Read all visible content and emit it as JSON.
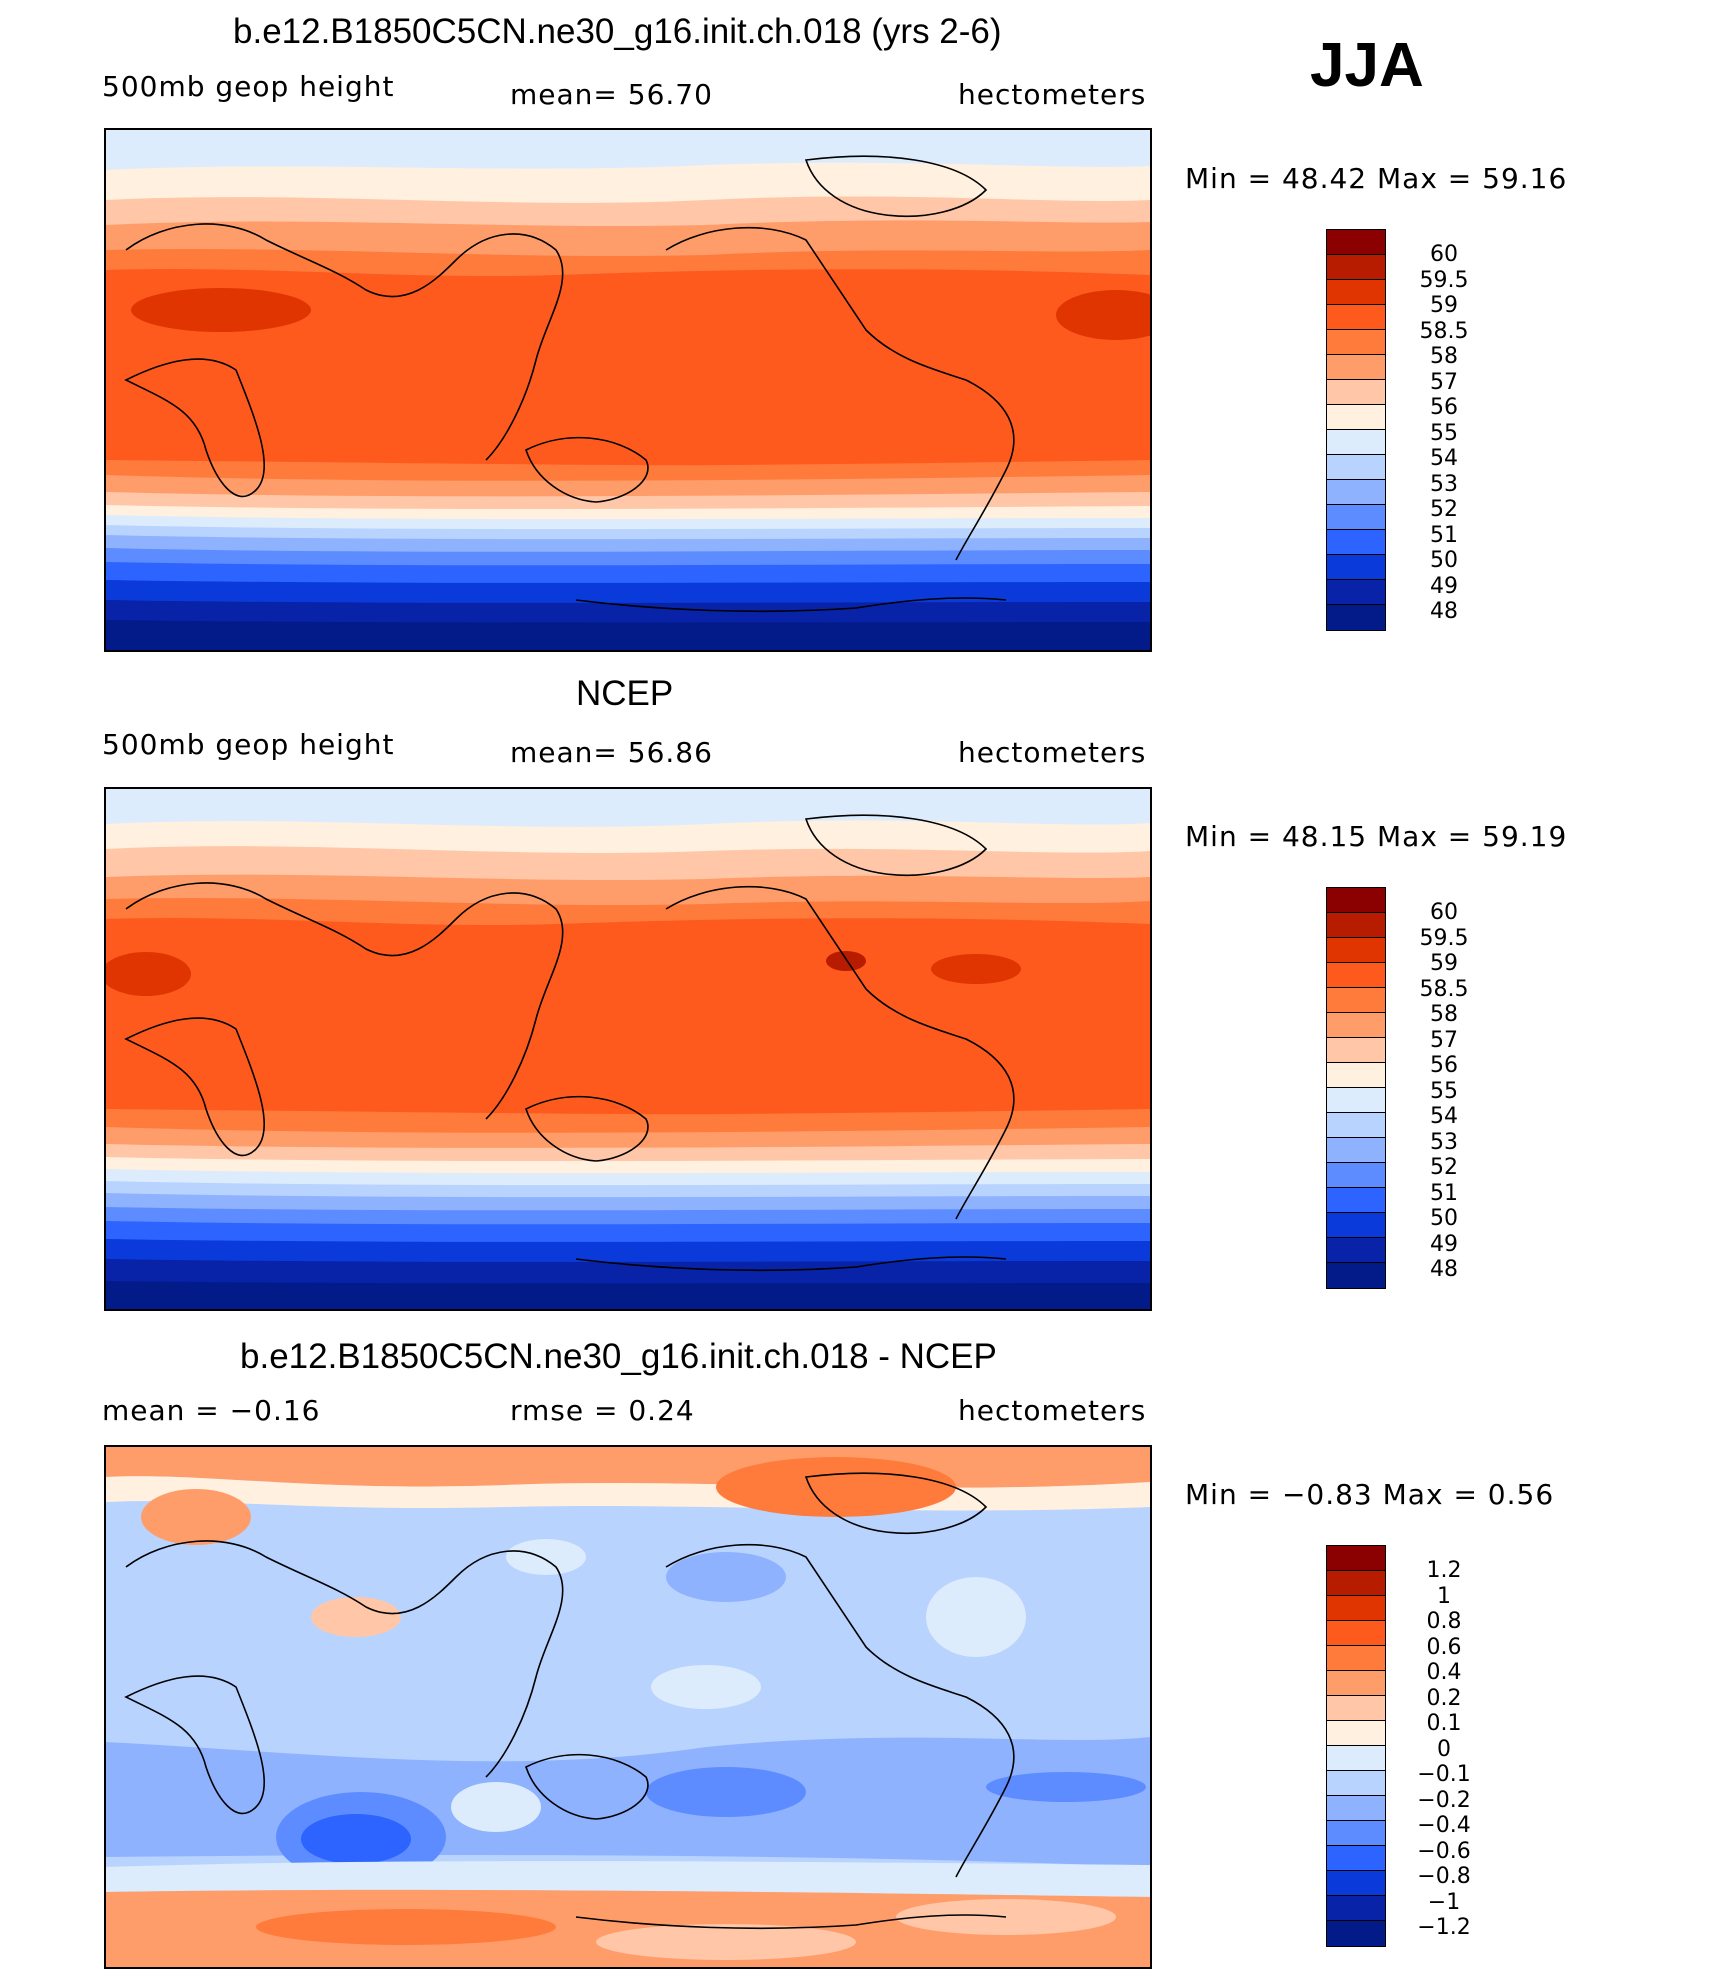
{
  "season": "JJA",
  "panels": [
    {
      "title": "b.e12.B1850C5CN.ne30_g16.init.ch.018 (yrs 2-6)",
      "left_label": "500mb geop height",
      "center_label": "mean=  56.70",
      "right_label": "hectometers",
      "minmax": "Min =   48.42 Max =   59.16",
      "colorbar_labels": [
        "60",
        "59.5",
        "59",
        "58.5",
        "58",
        "57",
        "56",
        "55",
        "54",
        "53",
        "52",
        "51",
        "50",
        "49",
        "48"
      ]
    },
    {
      "title": "NCEP",
      "left_label": "500mb geop height",
      "center_label": "mean=  56.86",
      "right_label": "hectometers",
      "minmax": "Min =   48.15 Max =   59.19",
      "colorbar_labels": [
        "60",
        "59.5",
        "59",
        "58.5",
        "58",
        "57",
        "56",
        "55",
        "54",
        "53",
        "52",
        "51",
        "50",
        "49",
        "48"
      ]
    },
    {
      "title": "b.e12.B1850C5CN.ne30_g16.init.ch.018 - NCEP",
      "left_label": "mean =   −0.16",
      "center_label": "rmse =   0.24",
      "right_label": "hectometers",
      "minmax": "Min =   −0.83 Max =    0.56",
      "colorbar_labels": [
        "1.2",
        "1",
        "0.8",
        "0.6",
        "0.4",
        "0.2",
        "0.1",
        "0",
        "−0.1",
        "−0.2",
        "−0.4",
        "−0.6",
        "−0.8",
        "−1",
        "−1.2"
      ]
    }
  ],
  "colorbar_colors": [
    "#8b0000",
    "#b81c00",
    "#e03500",
    "#ff5a1e",
    "#ff7b3c",
    "#ff9d6a",
    "#ffc7a8",
    "#fff0df",
    "#dcecfd",
    "#b9d3ff",
    "#8fb2ff",
    "#5c8cff",
    "#2d63ff",
    "#0a3ad9",
    "#0822a8",
    "#021b88"
  ]
}
